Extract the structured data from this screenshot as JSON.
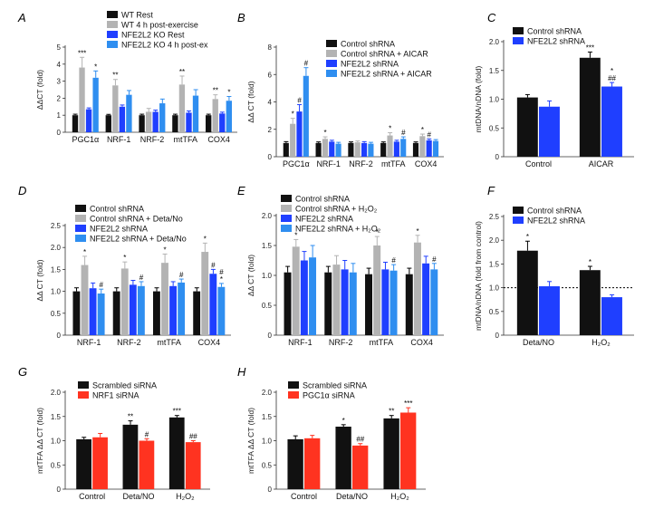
{
  "colors": {
    "black": "#111111",
    "gray": "#b3b3b3",
    "blue_dark": "#1f3fff",
    "blue_light": "#2f8ef0",
    "red": "#ff3320",
    "axis": "#333333"
  },
  "chart_data": [
    {
      "panel": "A",
      "type": "bar",
      "ylabel": "ΔΔCT (fold)",
      "ylim": [
        0,
        5
      ],
      "yticks": [
        "0",
        "1",
        "2",
        "3",
        "4",
        "5"
      ],
      "categories": [
        "PGC1α",
        "NRF-1",
        "NRF-2",
        "mtTFA",
        "COX4"
      ],
      "legend": [
        "WT Rest",
        "WT 4 h post-exercise",
        "NFE2L2 KO Rest",
        "NFE2L2 KO 4 h post-ex"
      ],
      "series": [
        {
          "name": "WT Rest",
          "color": "black",
          "values": [
            1.0,
            1.0,
            1.0,
            1.0,
            1.0
          ],
          "err": [
            0.06,
            0.05,
            0.06,
            0.06,
            0.06
          ],
          "labels": [
            "",
            "",
            "",
            "",
            ""
          ]
        },
        {
          "name": "WT 4 h post-exercise",
          "color": "gray",
          "values": [
            3.8,
            2.75,
            1.2,
            2.8,
            1.95
          ],
          "err": [
            0.6,
            0.35,
            0.2,
            0.5,
            0.25
          ],
          "labels": [
            "***",
            "**",
            "",
            "**",
            "**"
          ]
        },
        {
          "name": "NFE2L2 KO Rest",
          "color": "blue_dark",
          "values": [
            1.35,
            1.5,
            1.2,
            1.15,
            1.1
          ],
          "err": [
            0.08,
            0.1,
            0.1,
            0.1,
            0.08
          ],
          "labels": [
            "",
            "",
            "",
            "",
            ""
          ]
        },
        {
          "name": "NFE2L2 KO 4 h post-ex",
          "color": "blue_light",
          "values": [
            3.2,
            2.2,
            1.7,
            2.15,
            1.85
          ],
          "err": [
            0.4,
            0.25,
            0.25,
            0.35,
            0.25
          ],
          "labels": [
            "*",
            "",
            "",
            "",
            "*"
          ]
        }
      ]
    },
    {
      "panel": "B",
      "type": "bar",
      "ylabel": "ΔΔ CT (fold)",
      "ylim": [
        0,
        8
      ],
      "yticks": [
        "0",
        "2",
        "4",
        "6",
        "8"
      ],
      "categories": [
        "PGC1α",
        "NRF-1",
        "NRF-2",
        "mtTFA",
        "COX4"
      ],
      "legend": [
        "Control shRNA",
        "Control shRNA + AICAR",
        "NFE2L2 shRNA",
        "NFE2L2 shRNA + AICAR"
      ],
      "series": [
        {
          "name": "Control shRNA",
          "color": "black",
          "values": [
            1.0,
            1.0,
            1.0,
            1.0,
            1.0
          ],
          "err": [
            0.1,
            0.08,
            0.08,
            0.08,
            0.08
          ],
          "labels": [
            "",
            "",
            "",
            "",
            ""
          ]
        },
        {
          "name": "Control shRNA + AICAR",
          "color": "gray",
          "values": [
            2.4,
            1.3,
            1.05,
            1.55,
            1.5
          ],
          "err": [
            0.4,
            0.15,
            0.1,
            0.2,
            0.15
          ],
          "labels": [
            "*",
            "*",
            "",
            "*",
            "*"
          ]
        },
        {
          "name": "NFE2L2 shRNA",
          "color": "blue_dark",
          "values": [
            3.3,
            1.1,
            1.0,
            1.1,
            1.2
          ],
          "err": [
            0.5,
            0.1,
            0.1,
            0.1,
            0.1
          ],
          "labels": [
            "#",
            "",
            "",
            "",
            "#"
          ]
        },
        {
          "name": "NFE2L2 shRNA + AICAR",
          "color": "blue_light",
          "values": [
            5.9,
            0.95,
            0.95,
            1.3,
            1.15
          ],
          "err": [
            0.6,
            0.1,
            0.1,
            0.15,
            0.1
          ],
          "labels": [
            "#",
            "",
            "",
            "#",
            ""
          ]
        }
      ]
    },
    {
      "panel": "C",
      "type": "bar",
      "ylabel": "mtDNA/nDNA (fold)",
      "ylim": [
        0,
        2.0
      ],
      "yticks": [
        "0",
        "0.5",
        "1.0",
        "1.5",
        "2.0"
      ],
      "categories": [
        "Control",
        "AICAR"
      ],
      "legend": [
        "Control shRNA",
        "NFE2L2 shRNA"
      ],
      "series": [
        {
          "name": "Control shRNA",
          "color": "black",
          "values": [
            1.03,
            1.72
          ],
          "err": [
            0.05,
            0.1
          ],
          "labels": [
            "",
            "***"
          ]
        },
        {
          "name": "NFE2L2 shRNA",
          "color": "blue_dark",
          "values": [
            0.87,
            1.22
          ],
          "err": [
            0.1,
            0.07
          ],
          "labels": [
            "",
            "*\n##"
          ]
        }
      ]
    },
    {
      "panel": "D",
      "type": "bar",
      "ylabel": "ΔΔ CT (fold)",
      "ylim": [
        0,
        2.5
      ],
      "yticks": [
        "0",
        "0.5",
        "1.0",
        "1.5",
        "2.0",
        "2.5"
      ],
      "categories": [
        "NRF-1",
        "NRF-2",
        "mtTFA",
        "COX4"
      ],
      "legend": [
        "Control shRNA",
        "Control shRNA + Deta/No",
        "NFE2L2 shRNA",
        "NFE2L2 shRNA + Deta/No"
      ],
      "series": [
        {
          "name": "Control shRNA",
          "color": "black",
          "values": [
            1.0,
            1.0,
            1.0,
            1.0
          ],
          "err": [
            0.08,
            0.08,
            0.08,
            0.08
          ],
          "labels": [
            "",
            "",
            "",
            ""
          ]
        },
        {
          "name": "Control shRNA + Deta/No",
          "color": "gray",
          "values": [
            1.6,
            1.52,
            1.65,
            1.9
          ],
          "err": [
            0.2,
            0.15,
            0.2,
            0.2
          ],
          "labels": [
            "*",
            "*",
            "*",
            "*"
          ]
        },
        {
          "name": "NFE2L2 shRNA",
          "color": "blue_dark",
          "values": [
            1.07,
            1.15,
            1.12,
            1.4
          ],
          "err": [
            0.12,
            0.1,
            0.1,
            0.1
          ],
          "labels": [
            "",
            "",
            "",
            "#"
          ]
        },
        {
          "name": "NFE2L2 shRNA + Deta/No",
          "color": "blue_light",
          "values": [
            0.95,
            1.12,
            1.2,
            1.1
          ],
          "err": [
            0.1,
            0.1,
            0.08,
            0.08
          ],
          "labels": [
            "#",
            "#",
            "#",
            "#\n*"
          ]
        }
      ]
    },
    {
      "panel": "E",
      "type": "bar",
      "ylabel": "ΔΔ CT (fold)",
      "ylim": [
        0,
        2.0
      ],
      "yticks": [
        "0",
        "0.5",
        "1.0",
        "1.5",
        "2.0"
      ],
      "categories": [
        "NRF-1",
        "NRF-2",
        "mtTFA",
        "COX4"
      ],
      "legend": [
        "Control shRNA",
        "Control shRNA + H₂O₂",
        "NFE2L2 shRNA",
        "NFE2L2 shRNA + H₂O₂"
      ],
      "series": [
        {
          "name": "Control shRNA",
          "color": "black",
          "values": [
            1.05,
            1.05,
            1.02,
            1.02
          ],
          "err": [
            0.1,
            0.1,
            0.1,
            0.1
          ],
          "labels": [
            "",
            "",
            "",
            ""
          ]
        },
        {
          "name": "Control shRNA + H₂O₂",
          "color": "gray",
          "values": [
            1.48,
            1.18,
            1.5,
            1.55
          ],
          "err": [
            0.12,
            0.15,
            0.15,
            0.12
          ],
          "labels": [
            "*",
            "",
            "*",
            "*"
          ]
        },
        {
          "name": "NFE2L2 shRNA",
          "color": "blue_dark",
          "values": [
            1.25,
            1.1,
            1.1,
            1.2
          ],
          "err": [
            0.15,
            0.15,
            0.12,
            0.12
          ],
          "labels": [
            "",
            "",
            "",
            ""
          ]
        },
        {
          "name": "NFE2L2 shRNA + H₂O₂",
          "color": "blue_light",
          "values": [
            1.3,
            1.05,
            1.08,
            1.1
          ],
          "err": [
            0.2,
            0.15,
            0.1,
            0.1
          ],
          "labels": [
            "",
            "",
            "#",
            "#"
          ]
        }
      ]
    },
    {
      "panel": "F",
      "type": "bar",
      "ylabel": "mtDNA/nDNA (fold from control)",
      "ylim": [
        0,
        2.5
      ],
      "yticks": [
        "0",
        "0.5",
        "1.0",
        "1.5",
        "2.0",
        "2.5"
      ],
      "categories": [
        "Deta/NO",
        "H₂O₂"
      ],
      "refline": 1.0,
      "legend": [
        "Control shRNA",
        "NFE2L2 shRNA"
      ],
      "series": [
        {
          "name": "Control shRNA",
          "color": "black",
          "values": [
            1.78,
            1.37
          ],
          "err": [
            0.2,
            0.08
          ],
          "labels": [
            "*",
            "*"
          ]
        },
        {
          "name": "NFE2L2 shRNA",
          "color": "blue_dark",
          "values": [
            1.03,
            0.8
          ],
          "err": [
            0.1,
            0.05
          ],
          "labels": [
            "",
            ""
          ]
        }
      ]
    },
    {
      "panel": "G",
      "type": "bar",
      "ylabel": "mtTFA ΔΔ CT (fold)",
      "ylim": [
        0,
        2.0
      ],
      "yticks": [
        "0",
        "0.5",
        "1.0",
        "1.5",
        "2.0"
      ],
      "categories": [
        "Control",
        "Deta/NO",
        "H₂O₂"
      ],
      "legend": [
        "Scrambled siRNA",
        "NRF1 siRNA"
      ],
      "series": [
        {
          "name": "Scrambled siRNA",
          "color": "black",
          "values": [
            1.03,
            1.33,
            1.48
          ],
          "err": [
            0.04,
            0.08,
            0.04
          ],
          "labels": [
            "",
            "**",
            "***"
          ]
        },
        {
          "name": "NRF1 siRNA",
          "color": "red",
          "values": [
            1.07,
            1.0,
            0.97
          ],
          "err": [
            0.08,
            0.04,
            0.03
          ],
          "labels": [
            "",
            "#",
            "##"
          ]
        }
      ]
    },
    {
      "panel": "H",
      "type": "bar",
      "ylabel": "mtTFA ΔΔ CT (fold)",
      "ylim": [
        0,
        2.0
      ],
      "yticks": [
        "0",
        "0.5",
        "1.0",
        "1.5",
        "2.0"
      ],
      "categories": [
        "Control",
        "Deta/NO",
        "H₂O₂"
      ],
      "legend": [
        "Scrambled siRNA",
        "PGC1α siRNA"
      ],
      "series": [
        {
          "name": "Scrambled siRNA",
          "color": "black",
          "values": [
            1.03,
            1.29,
            1.46
          ],
          "err": [
            0.07,
            0.04,
            0.06
          ],
          "labels": [
            "",
            "*",
            "**"
          ]
        },
        {
          "name": "PGC1α siRNA",
          "color": "red",
          "values": [
            1.05,
            0.9,
            1.58
          ],
          "err": [
            0.06,
            0.04,
            0.1
          ],
          "labels": [
            "",
            "##",
            "***"
          ]
        }
      ]
    }
  ]
}
